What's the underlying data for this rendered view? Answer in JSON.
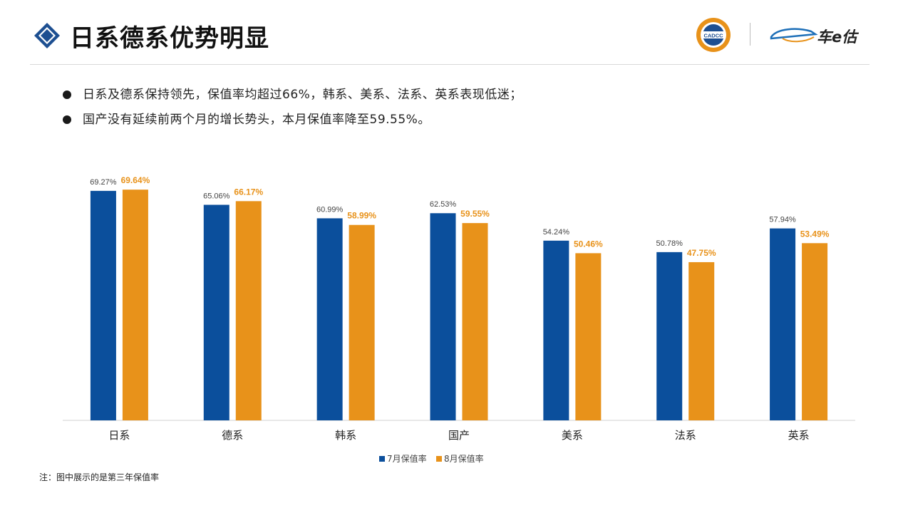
{
  "header": {
    "title": "日系德系优势明显",
    "logo_cadcc_text": "CADCC",
    "logo_brand_text": "车e估"
  },
  "bullets": [
    "日系及德系保持领先，保值率均超过66%，韩系、美系、法系、英系表现低迷；",
    "国产没有延续前两个月的增长势头，本月保值率降至59.55%。"
  ],
  "note": "注：图中展示的是第三年保值率",
  "colors": {
    "accent_blue": "#1d4f91",
    "series_july": "#0b4f9c",
    "series_august": "#e8921a"
  },
  "chart_data": {
    "type": "bar",
    "title": "",
    "xlabel": "",
    "ylabel": "",
    "ylim": [
      0,
      70
    ],
    "grid": false,
    "legend_position": "bottom",
    "categories": [
      "日系",
      "德系",
      "韩系",
      "国产",
      "美系",
      "法系",
      "英系"
    ],
    "series": [
      {
        "name": "7月保值率",
        "values": [
          69.27,
          65.06,
          60.99,
          62.53,
          54.24,
          50.78,
          57.94
        ],
        "labels": [
          "69.27%",
          "65.06%",
          "60.99%",
          "62.53%",
          "54.24%",
          "50.78%",
          "57.94%"
        ]
      },
      {
        "name": "8月保值率",
        "values": [
          69.64,
          66.17,
          58.99,
          59.55,
          50.46,
          47.75,
          53.49
        ],
        "labels": [
          "69.64%",
          "66.17%",
          "58.99%",
          "59.55%",
          "50.46%",
          "47.75%",
          "53.49%"
        ]
      }
    ]
  }
}
